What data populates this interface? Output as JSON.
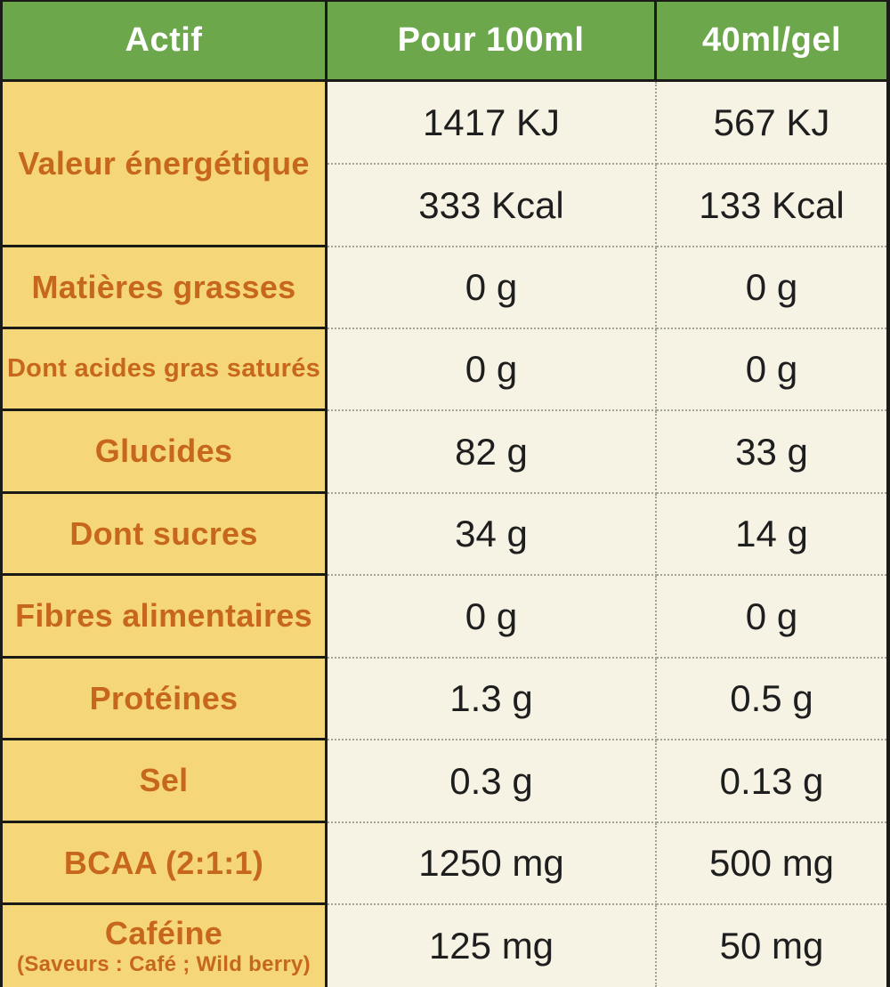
{
  "table": {
    "header": {
      "actif": "Actif",
      "per100": "Pour 100ml",
      "per40": "40ml/gel"
    },
    "energy": {
      "label": "Valeur énergétique",
      "kj_per100": "1417 KJ",
      "kj_per40": "567 KJ",
      "kcal_per100": "333 Kcal",
      "kcal_per40": "133 Kcal"
    },
    "rows": [
      {
        "label": "Matières grasses",
        "per100": "0 g",
        "per40": "0 g"
      },
      {
        "label": "Dont acides gras saturés",
        "per100": "0 g",
        "per40": "0 g"
      },
      {
        "label": "Glucides",
        "per100": "82 g",
        "per40": "33 g"
      },
      {
        "label": "Dont sucres",
        "per100": "34 g",
        "per40": "14 g"
      },
      {
        "label": "Fibres alimentaires",
        "per100": "0 g",
        "per40": "0 g"
      },
      {
        "label": "Protéines",
        "per100": "1.3 g",
        "per40": "0.5 g"
      },
      {
        "label": "Sel",
        "per100": "0.3 g",
        "per40": "0.13 g"
      },
      {
        "label": "BCAA (2:1:1)",
        "per100": "1250 mg",
        "per40": "500 mg"
      },
      {
        "label": "Caféine",
        "sublabel": "(Saveurs : Café ; Wild berry)",
        "per100": "125 mg",
        "per40": "50 mg"
      }
    ],
    "colors": {
      "header_bg": "#6CA84B",
      "header_text": "#FFFFFF",
      "label_bg": "#F5D679",
      "label_text": "#C7671E",
      "value_bg": "#F6F2E4",
      "value_text": "#1E1E1E",
      "solid_border": "#1A1A17",
      "dotted_border": "#A5A399"
    }
  }
}
